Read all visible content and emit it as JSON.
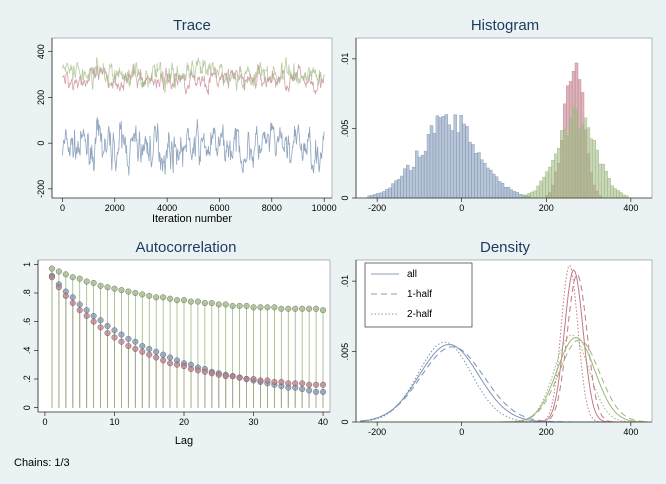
{
  "footnote": "Chains: 1/3",
  "colors": {
    "background": "#eaf2f3",
    "plot_bg": "#ffffff",
    "chain1": "#7d95b4",
    "chain2": "#c07a86",
    "chain3": "#9bb67e",
    "title": "#1e3a5f"
  },
  "chart_data": [
    {
      "type": "line",
      "title": "Trace",
      "xlabel": "Iteration number",
      "ylabel": "",
      "xlim": [
        -400,
        10300
      ],
      "ylim": [
        -240,
        460
      ],
      "xticks": [
        0,
        2000,
        4000,
        6000,
        8000,
        10000
      ],
      "yticks": [
        -200,
        0,
        200,
        400
      ],
      "grid": false,
      "series": [
        {
          "mean": -20,
          "amp": 80,
          "values_range": [
            -220,
            140
          ]
        },
        {
          "mean": 280,
          "amp": 40,
          "values_range": [
            150,
            400
          ]
        },
        {
          "mean": 300,
          "amp": 55,
          "values_range": [
            150,
            440
          ]
        }
      ]
    },
    {
      "type": "bar",
      "title": "Histogram",
      "xlabel": "",
      "ylabel": "",
      "xlim": [
        -250,
        450
      ],
      "ylim": [
        0,
        0.0115
      ],
      "xticks": [
        -200,
        0,
        200,
        400
      ],
      "yticks": [
        0,
        0.005,
        0.01
      ],
      "ytick_labels": [
        "0",
        ".005",
        ".01"
      ],
      "series": [
        {
          "mean": -30,
          "sd": 70,
          "peak": 0.0055
        },
        {
          "mean": 265,
          "sd": 22,
          "peak": 0.0108
        },
        {
          "mean": 270,
          "sd": 45,
          "peak": 0.006
        }
      ]
    },
    {
      "type": "scatter",
      "title": "Autocorrelation",
      "xlabel": "Lag",
      "ylabel": "",
      "xlim": [
        -1,
        41
      ],
      "ylim": [
        -0.03,
        1.03
      ],
      "xticks": [
        0,
        10,
        20,
        30,
        40
      ],
      "yticks": [
        0,
        0.2,
        0.4,
        0.6,
        0.8,
        1
      ],
      "ytick_labels": [
        "0",
        ".2",
        ".4",
        ".6",
        ".8",
        "1"
      ],
      "lags": [
        1,
        2,
        3,
        4,
        5,
        6,
        7,
        8,
        9,
        10,
        11,
        12,
        13,
        14,
        15,
        16,
        17,
        18,
        19,
        20,
        21,
        22,
        23,
        24,
        25,
        26,
        27,
        28,
        29,
        30,
        31,
        32,
        33,
        34,
        35,
        36,
        37,
        38,
        39,
        40
      ],
      "series": [
        {
          "values": [
            0.92,
            0.86,
            0.81,
            0.77,
            0.72,
            0.68,
            0.64,
            0.61,
            0.57,
            0.54,
            0.51,
            0.48,
            0.46,
            0.43,
            0.41,
            0.39,
            0.37,
            0.35,
            0.33,
            0.31,
            0.3,
            0.28,
            0.27,
            0.25,
            0.24,
            0.23,
            0.22,
            0.21,
            0.2,
            0.19,
            0.18,
            0.17,
            0.16,
            0.15,
            0.14,
            0.14,
            0.13,
            0.12,
            0.11,
            0.11
          ]
        },
        {
          "values": [
            0.91,
            0.84,
            0.78,
            0.73,
            0.68,
            0.64,
            0.6,
            0.56,
            0.52,
            0.49,
            0.46,
            0.43,
            0.41,
            0.39,
            0.37,
            0.35,
            0.33,
            0.31,
            0.3,
            0.29,
            0.27,
            0.26,
            0.25,
            0.24,
            0.23,
            0.22,
            0.22,
            0.21,
            0.2,
            0.2,
            0.19,
            0.19,
            0.18,
            0.18,
            0.17,
            0.17,
            0.17,
            0.16,
            0.16,
            0.16
          ]
        },
        {
          "values": [
            0.97,
            0.95,
            0.93,
            0.91,
            0.9,
            0.88,
            0.87,
            0.85,
            0.84,
            0.83,
            0.82,
            0.81,
            0.8,
            0.79,
            0.78,
            0.77,
            0.77,
            0.76,
            0.75,
            0.75,
            0.74,
            0.74,
            0.73,
            0.73,
            0.72,
            0.72,
            0.71,
            0.71,
            0.71,
            0.7,
            0.7,
            0.7,
            0.7,
            0.69,
            0.69,
            0.69,
            0.69,
            0.69,
            0.69,
            0.68
          ]
        }
      ]
    },
    {
      "type": "line",
      "title": "Density",
      "xlabel": "",
      "ylabel": "",
      "xlim": [
        -250,
        450
      ],
      "ylim": [
        0,
        0.0115
      ],
      "xticks": [
        -200,
        0,
        200,
        400
      ],
      "yticks": [
        0,
        0.005,
        0.01
      ],
      "ytick_labels": [
        "0",
        ".005",
        ".01"
      ],
      "legend": {
        "position": "top-left",
        "items": [
          "all",
          "1-half",
          "2-half"
        ]
      }
    }
  ]
}
